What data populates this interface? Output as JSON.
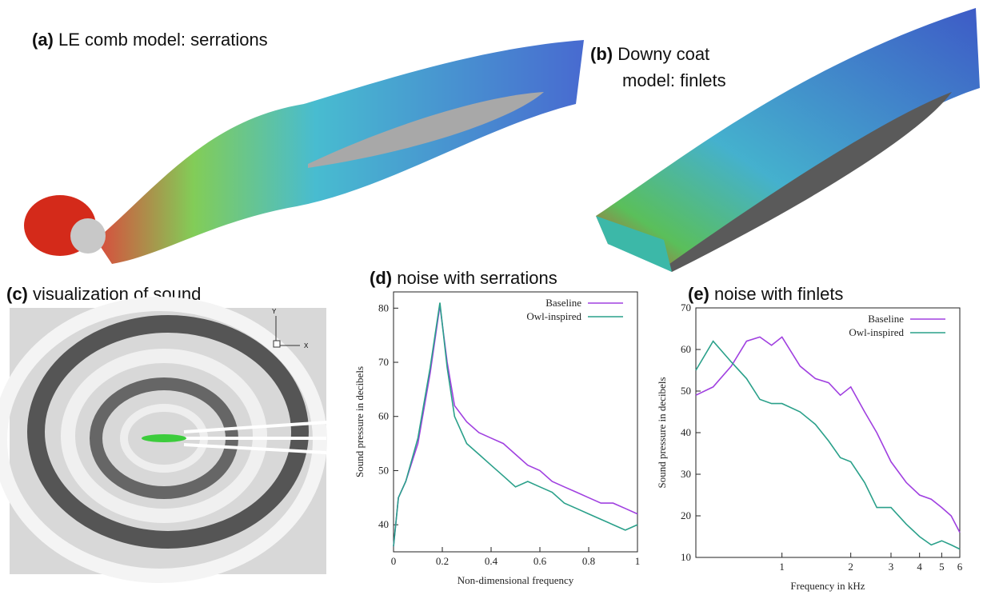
{
  "panels": {
    "a": {
      "label": "(a)",
      "caption": "LE comb model:  serrations"
    },
    "b": {
      "label": "(b)",
      "caption_lines": [
        "Downy coat",
        "model:  finlets"
      ]
    },
    "c": {
      "label": "(c)",
      "caption": "visualization of sound",
      "axis_y": "Y",
      "axis_x": "X"
    }
  },
  "chart_data": [
    {
      "type": "line",
      "label": "(d)",
      "title": "noise with serrations",
      "xlabel": "Non-dimensional frequency",
      "ylabel": "Sound pressure in decibels",
      "xlim": [
        0,
        1
      ],
      "xticks": [
        0,
        0.2,
        0.4,
        0.6,
        0.8,
        1
      ],
      "ylim": [
        35,
        83
      ],
      "yticks": [
        40,
        50,
        60,
        70,
        80
      ],
      "legend": "upper right",
      "x": [
        0,
        0.02,
        0.05,
        0.1,
        0.15,
        0.19,
        0.22,
        0.25,
        0.3,
        0.35,
        0.4,
        0.45,
        0.5,
        0.55,
        0.6,
        0.65,
        0.7,
        0.75,
        0.8,
        0.85,
        0.9,
        0.95,
        1
      ],
      "series": [
        {
          "name": "Baseline",
          "color": "#a040e0",
          "values": [
            36,
            45,
            48,
            55,
            68,
            80.5,
            70,
            62,
            59,
            57,
            56,
            55,
            53,
            51,
            50,
            48,
            47,
            46,
            45,
            44,
            44,
            43,
            42
          ]
        },
        {
          "name": "Owl-inspired",
          "color": "#2aa08a",
          "values": [
            36,
            45,
            48,
            56,
            69,
            81,
            69,
            60,
            55,
            53,
            51,
            49,
            47,
            48,
            47,
            46,
            44,
            43,
            42,
            41,
            40,
            39,
            40
          ]
        }
      ]
    },
    {
      "type": "line",
      "label": "(e)",
      "title": "noise with finlets",
      "xlabel": "Frequency in kHz",
      "ylabel": "Sound pressure in decibels",
      "log_x": true,
      "xlim": [
        0.42,
        6
      ],
      "xticks": [
        1,
        2,
        3,
        4,
        5,
        6
      ],
      "ylim": [
        10,
        70
      ],
      "yticks": [
        10,
        20,
        30,
        40,
        50,
        60,
        70
      ],
      "legend": "upper right",
      "x": [
        0.42,
        0.5,
        0.6,
        0.7,
        0.8,
        0.9,
        1.0,
        1.2,
        1.4,
        1.6,
        1.8,
        2.0,
        2.3,
        2.6,
        3.0,
        3.5,
        4.0,
        4.5,
        5,
        5.5,
        6
      ],
      "series": [
        {
          "name": "Baseline",
          "color": "#a040e0",
          "values": [
            49,
            51,
            56,
            62,
            63,
            61,
            63,
            56,
            53,
            52,
            49,
            51,
            45,
            40,
            33,
            28,
            25,
            24,
            22,
            20,
            16
          ]
        },
        {
          "name": "Owl-inspired",
          "color": "#2aa08a",
          "values": [
            55,
            62,
            57,
            53,
            48,
            47,
            47,
            45,
            42,
            38,
            34,
            33,
            28,
            22,
            22,
            18,
            15,
            13,
            14,
            13,
            12
          ]
        }
      ]
    }
  ]
}
